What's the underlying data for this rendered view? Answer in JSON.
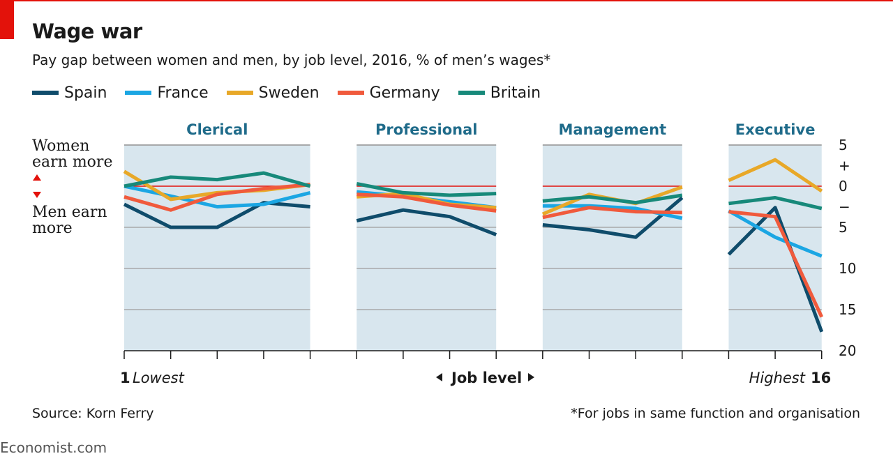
{
  "header": {
    "title": "Wage war",
    "subtitle": "Pay gap between women and men, by  job level, 2016, % of men’s wages*"
  },
  "footer": {
    "source": "Source: Korn Ferry",
    "note": "*For jobs in same function and organisation",
    "brand": "Economist.com"
  },
  "side_labels": {
    "women_line1": "Women",
    "women_line2": "earn more",
    "men_line1": "Men earn",
    "men_line2": "more"
  },
  "x_axis": {
    "first_number": "1",
    "first_label": "Lowest",
    "center_label": "Job level",
    "last_label": "Highest",
    "last_number": "16"
  },
  "colors": {
    "Spain": "#0f4c6b",
    "France": "#1ba6e3",
    "Sweden": "#e8a828",
    "Germany": "#f05a3c",
    "Britain": "#17897a",
    "panel_bg": "#d8e6ee",
    "zero_line": "#e3120b",
    "grid": "#a7a9aa"
  },
  "chart_data": {
    "type": "line",
    "title": "Wage war",
    "subtitle": "Pay gap between women and men, by  job level, 2016, % of men’s wages*",
    "xlabel": "Job level",
    "x_range": [
      1,
      16
    ],
    "y_note": "pay gap, positive = women earn more; plotted with axis inverted",
    "ylim": [
      -20,
      5
    ],
    "y_ticks": [
      {
        "value": 5,
        "label": "5"
      },
      {
        "value": 2.5,
        "label": "+"
      },
      {
        "value": 0,
        "label": "0"
      },
      {
        "value": -2.5,
        "label": "−"
      },
      {
        "value": -5,
        "label": "5"
      },
      {
        "value": -10,
        "label": "10"
      },
      {
        "value": -15,
        "label": "15"
      },
      {
        "value": -20,
        "label": "20"
      }
    ],
    "panels": [
      {
        "name": "Clerical",
        "levels": [
          1,
          2,
          3,
          4,
          5
        ]
      },
      {
        "name": "Professional",
        "levels": [
          6,
          7,
          8,
          9
        ]
      },
      {
        "name": "Management",
        "levels": [
          10,
          11,
          12,
          13
        ]
      },
      {
        "name": "Executive",
        "levels": [
          14,
          15,
          16
        ]
      }
    ],
    "series": [
      {
        "name": "Spain",
        "values": [
          -2.2,
          -5.0,
          -5.0,
          -2.0,
          -2.5,
          -4.2,
          -2.9,
          -3.7,
          -5.9,
          -4.7,
          -5.3,
          -6.2,
          -1.4,
          -8.3,
          -2.6,
          -17.7
        ]
      },
      {
        "name": "France",
        "values": [
          0.0,
          -1.2,
          -2.5,
          -2.2,
          -0.8,
          -0.7,
          -1.2,
          -1.9,
          -2.6,
          -2.4,
          -2.4,
          -2.7,
          -3.9,
          -3.0,
          -6.2,
          -8.5
        ]
      },
      {
        "name": "Sweden",
        "values": [
          1.8,
          -1.6,
          -0.8,
          -0.5,
          0.2,
          -1.3,
          -0.9,
          -2.2,
          -2.6,
          -3.4,
          -1.0,
          -2.1,
          -0.1,
          0.7,
          3.2,
          -0.6
        ]
      },
      {
        "name": "Germany",
        "values": [
          -1.3,
          -2.9,
          -1.0,
          -0.3,
          0.2,
          -1.0,
          -1.3,
          -2.3,
          -3.0,
          -3.8,
          -2.6,
          -3.1,
          -3.2,
          -3.1,
          -3.7,
          -15.9
        ]
      },
      {
        "name": "Britain",
        "values": [
          0.0,
          1.1,
          0.8,
          1.6,
          0.0,
          0.3,
          -0.8,
          -1.1,
          -0.9,
          -1.8,
          -1.3,
          -2.0,
          -1.1,
          -2.1,
          -1.4,
          -2.7
        ]
      }
    ],
    "legend_position": "top-left",
    "grid": true
  }
}
